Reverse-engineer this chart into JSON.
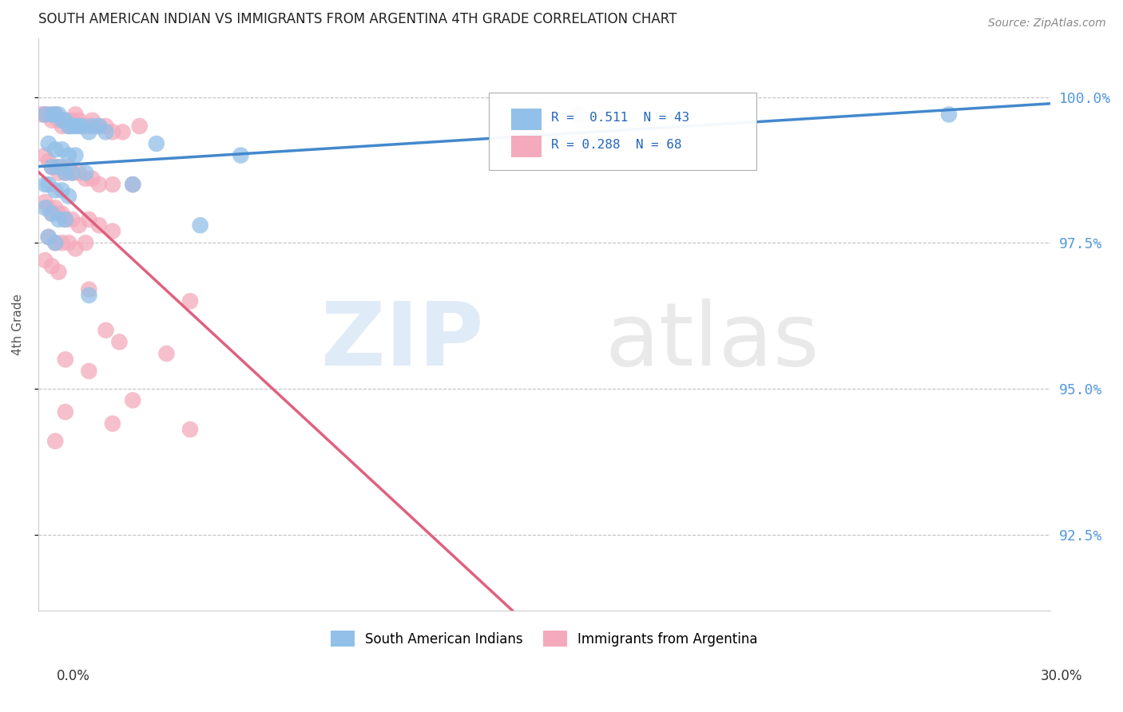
{
  "title": "SOUTH AMERICAN INDIAN VS IMMIGRANTS FROM ARGENTINA 4TH GRADE CORRELATION CHART",
  "source": "Source: ZipAtlas.com",
  "ylabel": "4th Grade",
  "yticks": [
    92.5,
    95.0,
    97.5,
    100.0
  ],
  "ytick_labels": [
    "92.5%",
    "95.0%",
    "97.5%",
    "100.0%"
  ],
  "xmin": 0.0,
  "xmax": 30.0,
  "ymin": 91.2,
  "ymax": 101.0,
  "blue_R": 0.511,
  "blue_N": 43,
  "pink_R": 0.288,
  "pink_N": 68,
  "blue_color": "#92C0E8",
  "pink_color": "#F4AABC",
  "blue_line_color": "#4488CC",
  "pink_line_color": "#E06080",
  "legend_label_blue": "South American Indians",
  "legend_label_pink": "Immigrants from Argentina",
  "blue_dots": [
    [
      0.2,
      99.7
    ],
    [
      0.4,
      99.7
    ],
    [
      0.5,
      99.7
    ],
    [
      0.6,
      99.7
    ],
    [
      0.7,
      99.6
    ],
    [
      0.8,
      99.6
    ],
    [
      0.9,
      99.5
    ],
    [
      1.0,
      99.5
    ],
    [
      1.1,
      99.5
    ],
    [
      1.2,
      99.5
    ],
    [
      1.3,
      99.5
    ],
    [
      1.5,
      99.4
    ],
    [
      1.6,
      99.5
    ],
    [
      1.8,
      99.5
    ],
    [
      2.0,
      99.4
    ],
    [
      0.3,
      99.2
    ],
    [
      0.5,
      99.1
    ],
    [
      0.7,
      99.1
    ],
    [
      0.9,
      99.0
    ],
    [
      1.1,
      99.0
    ],
    [
      0.4,
      98.8
    ],
    [
      0.6,
      98.8
    ],
    [
      0.8,
      98.7
    ],
    [
      1.0,
      98.7
    ],
    [
      1.4,
      98.7
    ],
    [
      0.2,
      98.5
    ],
    [
      0.3,
      98.5
    ],
    [
      0.5,
      98.4
    ],
    [
      0.7,
      98.4
    ],
    [
      0.9,
      98.3
    ],
    [
      0.2,
      98.1
    ],
    [
      0.4,
      98.0
    ],
    [
      0.6,
      97.9
    ],
    [
      0.8,
      97.9
    ],
    [
      0.3,
      97.6
    ],
    [
      0.5,
      97.5
    ],
    [
      1.5,
      96.6
    ],
    [
      2.8,
      98.5
    ],
    [
      3.5,
      99.2
    ],
    [
      6.0,
      99.0
    ],
    [
      4.8,
      97.8
    ],
    [
      16.0,
      99.7
    ],
    [
      27.0,
      99.7
    ]
  ],
  "pink_dots": [
    [
      0.1,
      99.7
    ],
    [
      0.2,
      99.7
    ],
    [
      0.3,
      99.7
    ],
    [
      0.4,
      99.6
    ],
    [
      0.5,
      99.7
    ],
    [
      0.6,
      99.6
    ],
    [
      0.7,
      99.5
    ],
    [
      0.8,
      99.6
    ],
    [
      0.9,
      99.5
    ],
    [
      1.0,
      99.6
    ],
    [
      1.1,
      99.7
    ],
    [
      1.2,
      99.6
    ],
    [
      1.3,
      99.5
    ],
    [
      1.5,
      99.5
    ],
    [
      1.6,
      99.6
    ],
    [
      1.8,
      99.5
    ],
    [
      2.0,
      99.5
    ],
    [
      2.2,
      99.4
    ],
    [
      2.5,
      99.4
    ],
    [
      3.0,
      99.5
    ],
    [
      0.2,
      99.0
    ],
    [
      0.3,
      98.9
    ],
    [
      0.4,
      98.8
    ],
    [
      0.5,
      98.8
    ],
    [
      0.6,
      98.7
    ],
    [
      0.7,
      98.8
    ],
    [
      0.8,
      98.7
    ],
    [
      0.9,
      98.8
    ],
    [
      1.0,
      98.7
    ],
    [
      1.2,
      98.7
    ],
    [
      1.4,
      98.6
    ],
    [
      1.6,
      98.6
    ],
    [
      1.8,
      98.5
    ],
    [
      2.2,
      98.5
    ],
    [
      2.8,
      98.5
    ],
    [
      0.2,
      98.2
    ],
    [
      0.3,
      98.1
    ],
    [
      0.4,
      98.0
    ],
    [
      0.5,
      98.1
    ],
    [
      0.6,
      98.0
    ],
    [
      0.7,
      98.0
    ],
    [
      0.8,
      97.9
    ],
    [
      1.0,
      97.9
    ],
    [
      1.2,
      97.8
    ],
    [
      1.5,
      97.9
    ],
    [
      1.8,
      97.8
    ],
    [
      2.2,
      97.7
    ],
    [
      0.3,
      97.6
    ],
    [
      0.5,
      97.5
    ],
    [
      0.7,
      97.5
    ],
    [
      0.9,
      97.5
    ],
    [
      1.1,
      97.4
    ],
    [
      1.4,
      97.5
    ],
    [
      0.2,
      97.2
    ],
    [
      0.4,
      97.1
    ],
    [
      0.6,
      97.0
    ],
    [
      1.5,
      96.7
    ],
    [
      2.0,
      96.0
    ],
    [
      2.4,
      95.8
    ],
    [
      0.8,
      95.5
    ],
    [
      1.5,
      95.3
    ],
    [
      2.8,
      94.8
    ],
    [
      4.5,
      96.5
    ],
    [
      3.8,
      95.6
    ],
    [
      0.8,
      94.6
    ],
    [
      2.2,
      94.4
    ],
    [
      0.5,
      94.1
    ],
    [
      4.5,
      94.3
    ]
  ]
}
